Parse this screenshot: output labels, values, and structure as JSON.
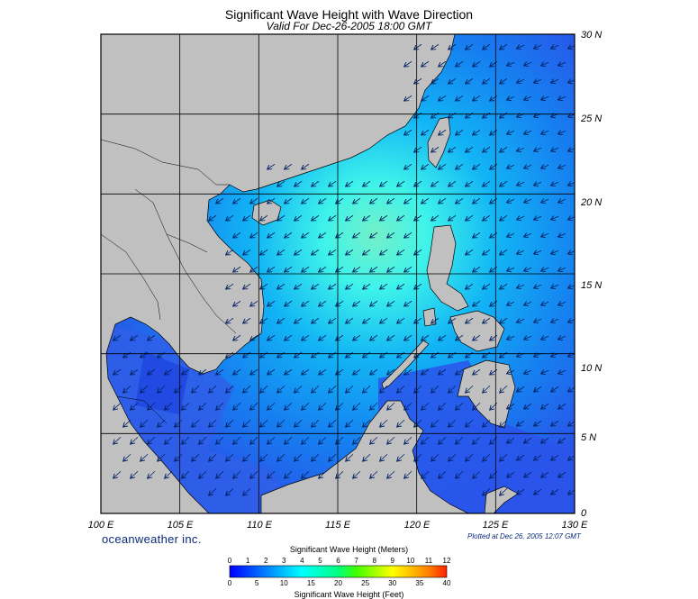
{
  "title": "Significant Wave Height with Wave Direction",
  "subtitle": "Valid For Dec-26-2005 18:00 GMT",
  "brand": "oceanweather inc.",
  "plotted": "Plotted at Dec 26, 2005 12:07 GMT",
  "colors": {
    "land": "#c0c0c0",
    "low_wave": "#2a63f0",
    "mid_wave": "#12b4f5",
    "high_wave": "#3ef3ea",
    "peak_wave": "#74f0c8",
    "grid": "#000000"
  },
  "map": {
    "lon_labels": [
      "100 E",
      "105 E",
      "110 E",
      "115 E",
      "120 E",
      "125 E",
      "130 E"
    ],
    "lat_labels": [
      "30 N",
      "25 N",
      "20 N",
      "15 N",
      "10 N",
      "5 N",
      "0"
    ],
    "lon_range": [
      100,
      130
    ],
    "lat_range": [
      0,
      30
    ],
    "grid_step_deg": 5,
    "arrow_direction": "southwest"
  },
  "colorbar": {
    "top_title": "Significant Wave Height (Meters)",
    "bottom_title": "Significant Wave Height (Feet)",
    "meters_labels": [
      "0",
      "1",
      "2",
      "3",
      "4",
      "5",
      "6",
      "7",
      "8",
      "9",
      "10",
      "11",
      "12"
    ],
    "feet_labels": [
      "0",
      "5",
      "10",
      "15",
      "20",
      "25",
      "30",
      "35",
      "40"
    ],
    "colors": [
      "#0000ff",
      "#0040ff",
      "#0080ff",
      "#00c0ff",
      "#00ffff",
      "#00ffc0",
      "#00ff80",
      "#40ff00",
      "#a0ff00",
      "#ffff00",
      "#ffc000",
      "#ff8000",
      "#ff2000"
    ]
  }
}
